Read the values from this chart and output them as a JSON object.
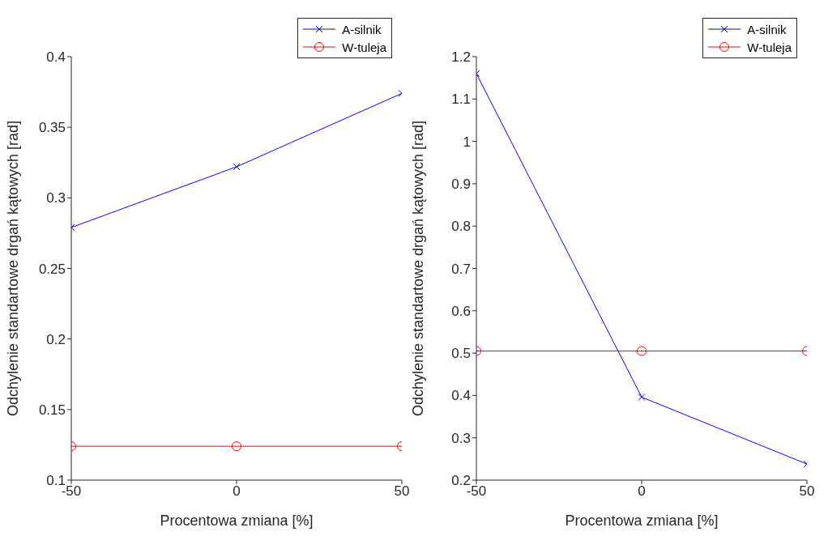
{
  "chart_data": [
    {
      "type": "line",
      "xlabel": "Procentowa zmiana [%]",
      "ylabel": "Odchylenie standartowe drgań kątowych [rad]",
      "x": [
        -50,
        0,
        50
      ],
      "xlim": [
        -50,
        50
      ],
      "xticks": [
        -50,
        0,
        50
      ],
      "ylim": [
        0.1,
        0.4
      ],
      "yticks": [
        0.1,
        0.15,
        0.2,
        0.25,
        0.3,
        0.35,
        0.4
      ],
      "grid": false,
      "legend": "top right",
      "line_style": "solid",
      "series": [
        {
          "name": "A-silnik",
          "color": "#0000ff",
          "marker": "cross",
          "values": [
            0.279,
            0.322,
            0.374
          ]
        },
        {
          "name": "W-tuleja",
          "color": "#ff0000",
          "marker": "circle",
          "values": [
            0.124,
            0.124,
            0.124
          ]
        }
      ]
    },
    {
      "type": "line",
      "xlabel": "Procentowa zmiana [%]",
      "ylabel": "Odchylenie standartowe drgań kątowych [rad]",
      "x": [
        -50,
        0,
        50
      ],
      "xlim": [
        -50,
        50
      ],
      "xticks": [
        -50,
        0,
        50
      ],
      "ylim": [
        0.2,
        1.2
      ],
      "yticks": [
        0.2,
        0.3,
        0.4,
        0.5,
        0.6,
        0.7,
        0.8,
        0.9,
        1,
        1.1,
        1.2
      ],
      "grid": false,
      "legend": "top right",
      "line_style": "solid",
      "series": [
        {
          "name": "A-silnik",
          "color": "#0000ff",
          "marker": "cross",
          "values": [
            1.16,
            0.396,
            0.238
          ]
        },
        {
          "name": "W-tuleja",
          "color": "#ff0000",
          "marker": "circle",
          "values": [
            0.505,
            0.505,
            0.505
          ]
        }
      ]
    }
  ]
}
